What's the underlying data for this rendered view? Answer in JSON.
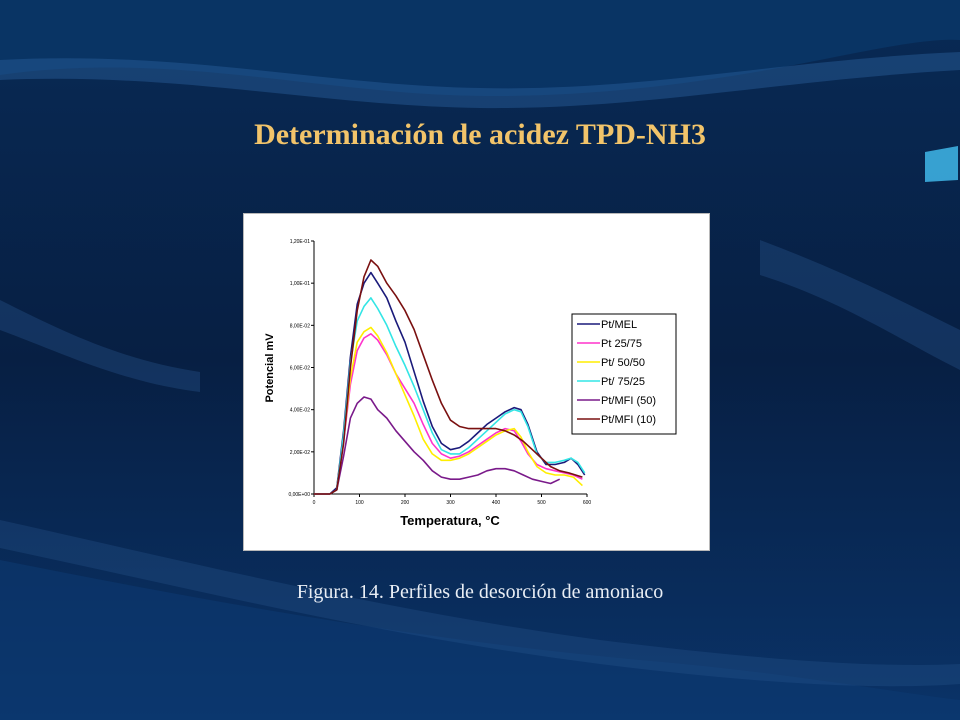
{
  "slide": {
    "title": "Determinación de acidez TPD-NH3",
    "caption": "Figura. 14. Perfiles de desorción de amoniaco"
  },
  "colors": {
    "background": "#08264f",
    "title": "#f2c46a",
    "caption": "#e9eef5"
  },
  "chart_data": {
    "type": "line",
    "xlabel": "Temperatura, °C",
    "ylabel": "Potencial mV",
    "xlim": [
      0,
      600
    ],
    "ylim": [
      0,
      0.12
    ],
    "x_ticks": [
      0,
      100,
      200,
      300,
      400,
      500,
      600
    ],
    "x_tick_labels": [
      "0",
      "100",
      "200",
      "300",
      "400",
      "500",
      "600"
    ],
    "y_ticks": [
      0,
      0.02,
      0.04,
      0.06,
      0.08,
      0.1,
      0.12
    ],
    "y_tick_labels": [
      "0,00E+00",
      "2,00E-02",
      "4,00E-02",
      "6,00E-02",
      "8,00E-02",
      "1,00E-01",
      "1,20E-01"
    ],
    "grid": false,
    "legend_position": "right",
    "series": [
      {
        "name": "Pt/MEL",
        "color": "#1a1a7a",
        "x": [
          0,
          20,
          35,
          50,
          65,
          80,
          95,
          110,
          125,
          140,
          160,
          180,
          200,
          220,
          240,
          260,
          280,
          300,
          320,
          340,
          360,
          380,
          400,
          420,
          440,
          455,
          470,
          490,
          510,
          530,
          550,
          565,
          580,
          595
        ],
        "y": [
          0,
          0,
          0,
          0.003,
          0.03,
          0.065,
          0.09,
          0.1,
          0.105,
          0.1,
          0.093,
          0.082,
          0.072,
          0.058,
          0.044,
          0.032,
          0.024,
          0.021,
          0.022,
          0.025,
          0.029,
          0.033,
          0.036,
          0.039,
          0.041,
          0.04,
          0.033,
          0.02,
          0.014,
          0.014,
          0.015,
          0.017,
          0.014,
          0.009
        ]
      },
      {
        "name": " Pt 25/75",
        "color": "#ff33cc",
        "x": [
          0,
          20,
          35,
          50,
          65,
          80,
          95,
          110,
          125,
          140,
          160,
          180,
          200,
          220,
          240,
          260,
          280,
          300,
          320,
          340,
          360,
          380,
          400,
          420,
          440,
          455,
          470,
          490,
          510,
          530,
          550,
          570,
          590
        ],
        "y": [
          0,
          0,
          0,
          0.002,
          0.025,
          0.052,
          0.068,
          0.074,
          0.076,
          0.073,
          0.066,
          0.057,
          0.05,
          0.043,
          0.033,
          0.024,
          0.019,
          0.017,
          0.018,
          0.02,
          0.023,
          0.026,
          0.029,
          0.031,
          0.03,
          0.025,
          0.019,
          0.014,
          0.012,
          0.011,
          0.01,
          0.009,
          0.007
        ]
      },
      {
        "name": "Pt/ 50/50",
        "color": "#ffee00",
        "x": [
          0,
          20,
          35,
          50,
          65,
          80,
          95,
          110,
          125,
          140,
          160,
          180,
          200,
          220,
          240,
          260,
          280,
          300,
          320,
          340,
          360,
          380,
          400,
          420,
          440,
          455,
          470,
          490,
          510,
          530,
          550,
          570,
          590
        ],
        "y": [
          0,
          0,
          0,
          0.002,
          0.026,
          0.055,
          0.072,
          0.077,
          0.079,
          0.075,
          0.067,
          0.057,
          0.047,
          0.037,
          0.026,
          0.019,
          0.016,
          0.016,
          0.017,
          0.019,
          0.022,
          0.025,
          0.028,
          0.03,
          0.031,
          0.027,
          0.02,
          0.013,
          0.01,
          0.009,
          0.009,
          0.008,
          0.004
        ]
      },
      {
        "name": "Pt/ 75/25",
        "color": "#33e5e5",
        "x": [
          0,
          20,
          35,
          50,
          65,
          80,
          95,
          110,
          125,
          140,
          160,
          180,
          200,
          220,
          240,
          260,
          280,
          300,
          320,
          340,
          360,
          380,
          400,
          420,
          440,
          455,
          470,
          490,
          510,
          530,
          550,
          565,
          580,
          595
        ],
        "y": [
          0,
          0,
          0,
          0.002,
          0.028,
          0.062,
          0.082,
          0.089,
          0.093,
          0.088,
          0.08,
          0.07,
          0.061,
          0.051,
          0.04,
          0.029,
          0.021,
          0.019,
          0.019,
          0.022,
          0.026,
          0.03,
          0.034,
          0.038,
          0.04,
          0.039,
          0.032,
          0.019,
          0.015,
          0.015,
          0.016,
          0.017,
          0.015,
          0.01
        ]
      },
      {
        "name": "Pt/MFI (50)",
        "color": "#7a1a8a",
        "x": [
          0,
          20,
          35,
          50,
          65,
          80,
          95,
          110,
          125,
          140,
          160,
          180,
          200,
          220,
          240,
          260,
          280,
          300,
          320,
          340,
          360,
          380,
          400,
          420,
          440,
          460,
          480,
          500,
          520,
          540
        ],
        "y": [
          0,
          0,
          0,
          0.002,
          0.018,
          0.036,
          0.043,
          0.046,
          0.045,
          0.04,
          0.036,
          0.03,
          0.025,
          0.02,
          0.016,
          0.011,
          0.008,
          0.007,
          0.007,
          0.008,
          0.009,
          0.011,
          0.012,
          0.012,
          0.011,
          0.009,
          0.007,
          0.006,
          0.005,
          0.007
        ]
      },
      {
        "name": "Pt/MFI (10)",
        "color": "#7a1010",
        "x": [
          0,
          20,
          35,
          50,
          65,
          80,
          95,
          110,
          125,
          140,
          160,
          180,
          200,
          220,
          240,
          260,
          280,
          300,
          320,
          340,
          360,
          380,
          400,
          420,
          440,
          460,
          480,
          500,
          520,
          540,
          560,
          575,
          590
        ],
        "y": [
          0,
          0,
          0,
          0.002,
          0.024,
          0.06,
          0.087,
          0.103,
          0.111,
          0.108,
          0.1,
          0.094,
          0.087,
          0.078,
          0.066,
          0.054,
          0.043,
          0.035,
          0.032,
          0.031,
          0.031,
          0.031,
          0.031,
          0.03,
          0.028,
          0.025,
          0.021,
          0.017,
          0.013,
          0.011,
          0.01,
          0.009,
          0.008
        ]
      }
    ]
  }
}
